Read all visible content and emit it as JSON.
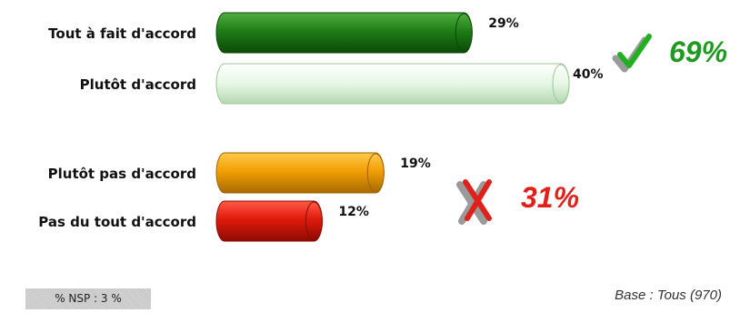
{
  "chart_data": {
    "type": "bar",
    "orientation": "horizontal",
    "categories": [
      "Tout à fait d'accord",
      "Plutôt d'accord",
      "Plutôt pas d'accord",
      "Pas du tout d'accord"
    ],
    "values": [
      29,
      40,
      19,
      12
    ],
    "value_labels": [
      "29%",
      "40%",
      "19%",
      "12%"
    ],
    "colors": [
      "#1e7d16",
      "#e6f7e4",
      "#f29f05",
      "#e01a0a"
    ],
    "unit": "%",
    "xlim": [
      0,
      40
    ],
    "grid": false,
    "legend": false,
    "groups": [
      {
        "label": "69%",
        "icon": "checkmark-icon",
        "color": "#1e9a1e"
      },
      {
        "label": "31%",
        "icon": "cross-icon",
        "color": "#e0201a"
      }
    ]
  },
  "footer": {
    "nsp": "% NSP : 3 %",
    "base": "Base : Tous (970)"
  }
}
